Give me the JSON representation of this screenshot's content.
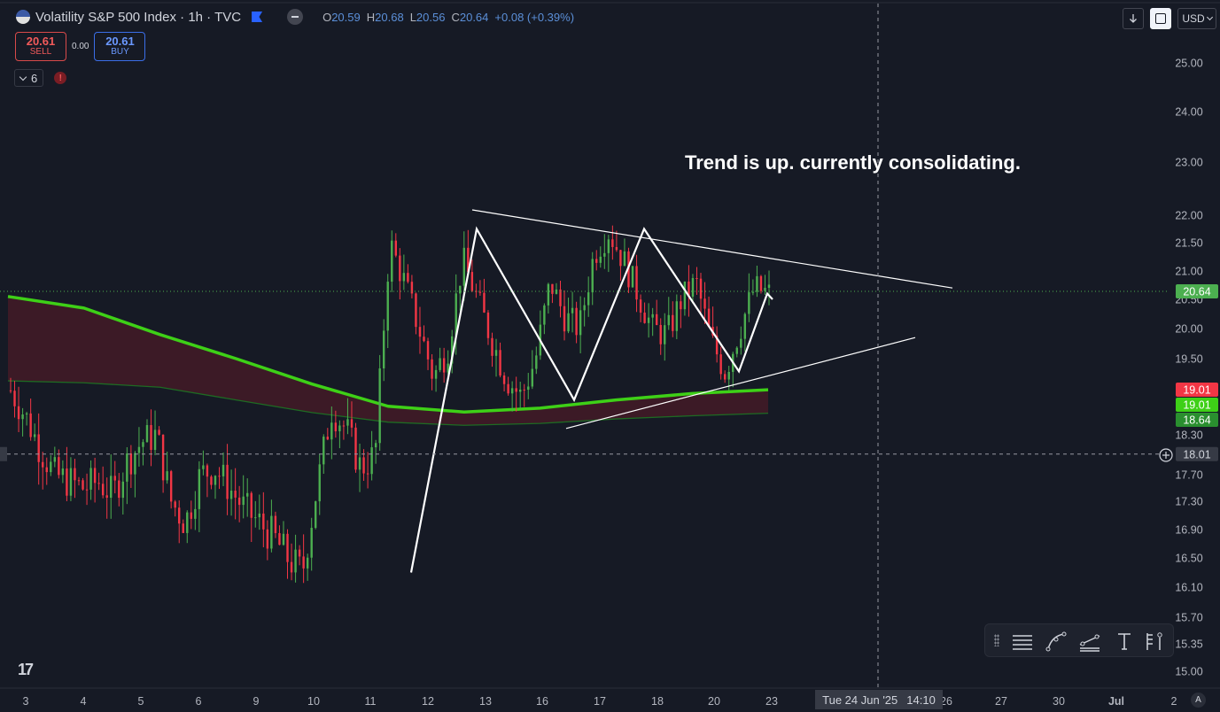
{
  "legend": {
    "symbol": "Volatility S&P 500 Index · 1h · TVC",
    "ohlc": [
      {
        "k": "O",
        "v": "20.59"
      },
      {
        "k": "H",
        "v": "20.68"
      },
      {
        "k": "L",
        "v": "20.56"
      },
      {
        "k": "C",
        "v": "20.64"
      },
      {
        "k": "",
        "v": "+0.08 (+0.39%)"
      }
    ]
  },
  "trade": {
    "sell_price": "20.61",
    "sell_label": "SELL",
    "spread": "0.00",
    "buy_price": "20.61",
    "buy_label": "BUY"
  },
  "indicators": {
    "count": "6",
    "alert": "!"
  },
  "controls": {
    "currency": "USD"
  },
  "annotation": "Trend is up. currently consolidating.",
  "crosshair": {
    "date": "Tue 24 Jun '25",
    "time": "14:10",
    "price": "18.01"
  },
  "scale_button": "A",
  "colors": {
    "up": "#4caf50",
    "down": "#f23645",
    "ema_fast": "#3ed017",
    "ema_slow": "#1e6b23",
    "cloud": "#5c1c28",
    "drawings": "#ffffff"
  },
  "icons": [
    "horizontal-lines-icon",
    "curve-icon",
    "trend-lines-icon",
    "text-icon",
    "fib-icon",
    "flag-icon",
    "auto-scale-icon",
    "arrow-down-icon"
  ],
  "chart_data": {
    "type": "candlestick",
    "interval": "1h",
    "x_ticks": [
      "3",
      "4",
      "5",
      "6",
      "9",
      "10",
      "11",
      "12",
      "13",
      "16",
      "17",
      "18",
      "20",
      "23",
      "26",
      "27",
      "30",
      "Jul",
      "2"
    ],
    "y_ticks": [
      "25.00",
      "24.00",
      "23.00",
      "22.00",
      "21.50",
      "21.00",
      "20.50",
      "20.00",
      "19.50",
      "18.30",
      "17.70",
      "17.30",
      "16.90",
      "16.50",
      "16.10",
      "15.70",
      "15.35",
      "15.00"
    ],
    "price_labels": [
      {
        "value": "20.64",
        "color": "#4caf50"
      },
      {
        "value": "19.01",
        "color": "#f23645"
      },
      {
        "value": "19.01",
        "color": "#3ed017"
      },
      {
        "value": "18.64",
        "color": "#2a8f2f"
      }
    ],
    "last_price": 20.64,
    "moving_averages": [
      {
        "values": [
          20.55,
          20.35,
          19.9,
          19.5,
          19.1,
          18.75,
          18.66,
          18.72,
          18.85,
          18.95,
          19.01
        ]
      },
      {
        "values": [
          19.15,
          19.12,
          19.05,
          18.85,
          18.65,
          18.5,
          18.45,
          18.48,
          18.55,
          18.6,
          18.64
        ]
      }
    ],
    "swings": [
      16.3,
      21.75,
      18.85,
      21.75,
      19.3,
      20.6,
      20.5
    ],
    "trendlines": [
      {
        "name": "resistance",
        "from": 22.1,
        "to": 20.7
      },
      {
        "name": "support",
        "from": 18.4,
        "to": 19.85
      }
    ],
    "candle_path": [
      19.0,
      18.6,
      18.1,
      17.7,
      17.6,
      17.5,
      17.6,
      17.4,
      17.9,
      18.2,
      18.3,
      17.3,
      17.0,
      17.7,
      17.8,
      17.5,
      17.2,
      17.0,
      16.8,
      16.5,
      16.3,
      17.5,
      18.7,
      18.4,
      17.8,
      18.0,
      21.5,
      20.8,
      20.0,
      19.2,
      19.7,
      21.2,
      20.5,
      19.8,
      19.2,
      18.9,
      19.5,
      20.8,
      20.2,
      20.0,
      21.3,
      21.7,
      21.2,
      20.6,
      20.0,
      19.9,
      20.5,
      20.8,
      19.8,
      19.3,
      20.0,
      20.7,
      20.6
    ]
  }
}
